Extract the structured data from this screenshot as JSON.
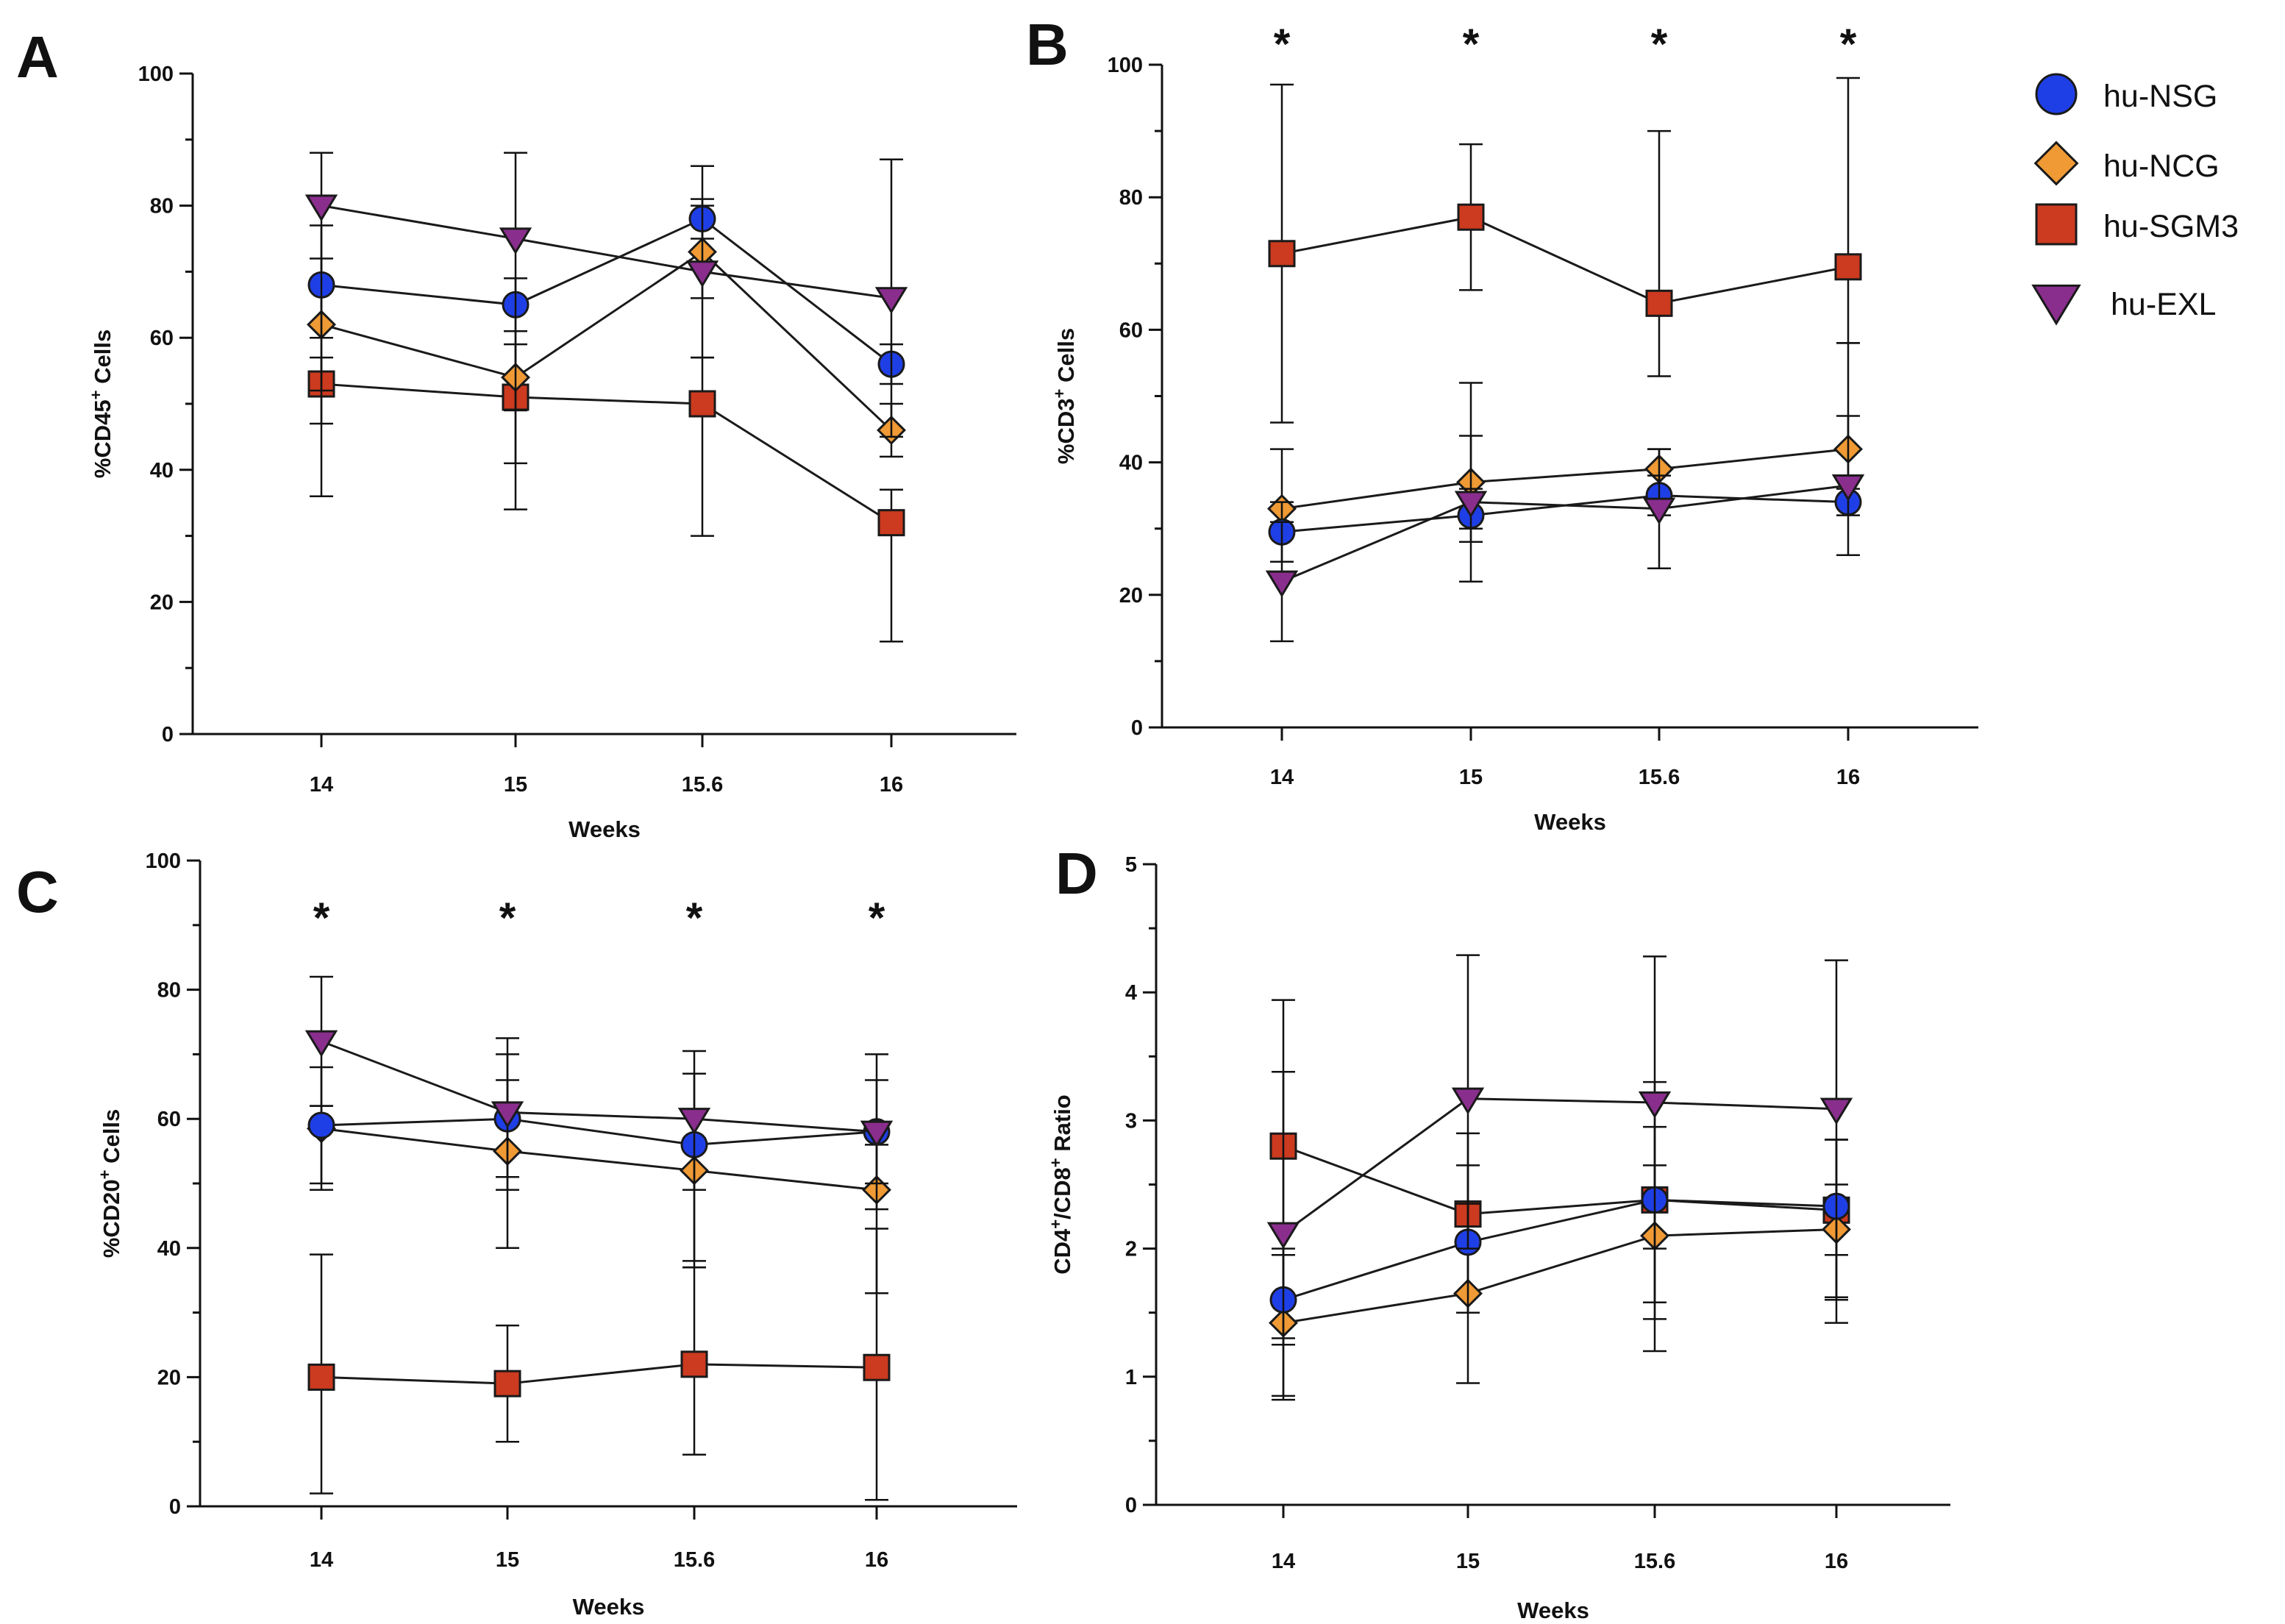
{
  "chart_data": [
    {
      "panel": "A",
      "type": "line",
      "categories": [
        "14",
        "15",
        "15.6",
        "16"
      ],
      "xlabel": "Weeks",
      "ylabel": {
        "prefix": "%CD45",
        "sup": "+",
        "suffix": " Cells"
      },
      "ylim": [
        0,
        100
      ],
      "yticks": [
        "0",
        "20",
        "40",
        "60",
        "80",
        "100"
      ],
      "significance": [],
      "series": [
        {
          "name": "hu-NSG",
          "values": [
            68,
            65,
            78,
            56
          ],
          "upper": [
            77,
            69,
            81,
            59
          ],
          "lower": [
            60,
            61,
            75,
            53
          ]
        },
        {
          "name": "hu-NCG",
          "values": [
            62,
            54,
            73,
            46
          ],
          "upper": [
            72,
            59,
            80,
            50
          ],
          "lower": [
            52,
            49,
            66,
            42
          ]
        },
        {
          "name": "hu-SGM3",
          "values": [
            53,
            51,
            50,
            32
          ],
          "upper": [
            57,
            61,
            57,
            37
          ],
          "lower": [
            47,
            41,
            30,
            14
          ]
        },
        {
          "name": "hu-EXL",
          "values": [
            80,
            75,
            70,
            66
          ],
          "upper": [
            88,
            88,
            86,
            87
          ],
          "lower": [
            36,
            34,
            57,
            45
          ]
        }
      ]
    },
    {
      "panel": "B",
      "type": "line",
      "categories": [
        "14",
        "15",
        "15.6",
        "16"
      ],
      "xlabel": "Weeks",
      "ylabel": {
        "prefix": "%CD3",
        "sup": "+",
        "suffix": " Cells"
      },
      "ylim": [
        0,
        100
      ],
      "yticks": [
        "0",
        "20",
        "40",
        "60",
        "80",
        "100"
      ],
      "significance": [
        "*",
        "*",
        "*",
        "*"
      ],
      "series": [
        {
          "name": "hu-NSG",
          "values": [
            29.5,
            32,
            35,
            34
          ],
          "upper": [
            34,
            36,
            38,
            36
          ],
          "lower": [
            25,
            28,
            32,
            32
          ]
        },
        {
          "name": "hu-NCG",
          "values": [
            33,
            37,
            39,
            42
          ],
          "upper": [
            42,
            44,
            42,
            47
          ],
          "lower": [
            30,
            30,
            36,
            38
          ]
        },
        {
          "name": "hu-SGM3",
          "values": [
            71.5,
            77,
            64,
            69.5
          ],
          "upper": [
            97,
            88,
            90,
            98
          ],
          "lower": [
            46,
            66,
            53,
            58
          ]
        },
        {
          "name": "hu-EXL",
          "values": [
            22,
            34,
            33,
            36.5
          ],
          "upper": [
            31,
            52,
            42,
            58
          ],
          "lower": [
            13,
            22,
            24,
            26
          ]
        }
      ]
    },
    {
      "panel": "C",
      "type": "line",
      "categories": [
        "14",
        "15",
        "15.6",
        "16"
      ],
      "xlabel": "Weeks",
      "ylabel": {
        "prefix": "%CD20",
        "sup": "+",
        "suffix": " Cells"
      },
      "ylim": [
        0,
        100
      ],
      "yticks": [
        "0",
        "20",
        "40",
        "60",
        "80",
        "100"
      ],
      "significance": [
        "*",
        "*",
        "*",
        "*"
      ],
      "series": [
        {
          "name": "hu-NSG",
          "values": [
            59,
            60,
            56,
            58
          ],
          "upper": [
            68,
            70,
            67,
            66
          ],
          "lower": [
            50,
            51,
            49,
            50
          ]
        },
        {
          "name": "hu-NCG",
          "values": [
            58.5,
            55,
            52,
            49
          ],
          "upper": [
            62,
            66,
            57,
            56
          ],
          "lower": [
            49,
            40,
            38,
            33
          ]
        },
        {
          "name": "hu-SGM3",
          "values": [
            20,
            19,
            22,
            21.5
          ],
          "upper": [
            39,
            28,
            37,
            43
          ],
          "lower": [
            2,
            10,
            8,
            1
          ]
        },
        {
          "name": "hu-EXL",
          "values": [
            72,
            61,
            60,
            58
          ],
          "upper": [
            82,
            72.5,
            70.5,
            70
          ],
          "lower": [
            62,
            49,
            37,
            46
          ]
        }
      ]
    },
    {
      "panel": "D",
      "type": "line",
      "categories": [
        "14",
        "15",
        "15.6",
        "16"
      ],
      "xlabel": "Weeks",
      "ylabel": {
        "prefix": "CD4",
        "sup": "+",
        "mid": "/CD8",
        "sup2": "+",
        "suffix": " Ratio"
      },
      "ylim": [
        0,
        5
      ],
      "yticks": [
        "0",
        "1",
        "2",
        "3",
        "4",
        "5"
      ],
      "significance": [],
      "series": [
        {
          "name": "hu-NSG",
          "values": [
            1.6,
            2.05,
            2.38,
            2.33
          ],
          "upper": [
            2.0,
            2.65,
            2.95,
            2.85
          ],
          "lower": [
            1.25,
            1.5,
            1.45,
            1.6
          ]
        },
        {
          "name": "hu-NCG",
          "values": [
            1.42,
            1.65,
            2.1,
            2.15
          ],
          "upper": [
            1.95,
            2.35,
            2.65,
            2.5
          ],
          "lower": [
            0.82,
            0.95,
            1.58,
            1.62
          ]
        },
        {
          "name": "hu-SGM3",
          "values": [
            2.8,
            2.27,
            2.38,
            2.3
          ],
          "upper": [
            3.38,
            2.9,
            3.3,
            2.85
          ],
          "lower": [
            0.85,
            1.5,
            1.2,
            1.42
          ]
        },
        {
          "name": "hu-EXL",
          "values": [
            2.12,
            3.17,
            3.14,
            3.09
          ],
          "upper": [
            3.94,
            4.29,
            4.28,
            4.25
          ],
          "lower": [
            1.3,
            2.0,
            2.0,
            1.95
          ]
        }
      ]
    }
  ],
  "legend": [
    {
      "name": "hu-NSG",
      "marker": "circle",
      "color": "#1f3fe6"
    },
    {
      "name": "hu-NCG",
      "marker": "diamond",
      "color": "#f09a35"
    },
    {
      "name": "hu-SGM3",
      "marker": "square",
      "color": "#cc3a1f"
    },
    {
      "name": "hu-EXL",
      "marker": "triangle-down",
      "color": "#8a2e8e"
    }
  ]
}
